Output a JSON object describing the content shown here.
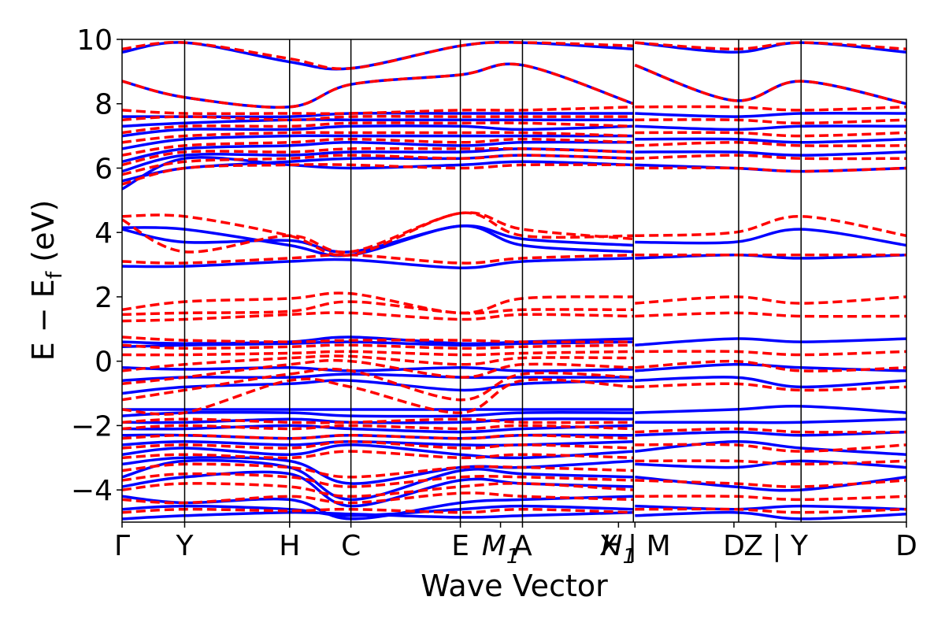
{
  "chart_data": {
    "type": "line",
    "title": "",
    "xlabel": "Wave Vector",
    "ylabel_main": "E − E",
    "ylabel_sub": "f",
    "ylabel_unit": " (eV)",
    "ylim": [
      -5,
      10
    ],
    "yticks": [
      {
        "value": 10,
        "label": "10"
      },
      {
        "value": 8,
        "label": "8"
      },
      {
        "value": 6,
        "label": "6"
      },
      {
        "value": 4,
        "label": "4"
      },
      {
        "value": 2,
        "label": "2"
      },
      {
        "value": 0,
        "label": "0"
      },
      {
        "value": -2,
        "label": "−2"
      },
      {
        "value": -4,
        "label": "−4"
      }
    ],
    "xlim": [
      0,
      1
    ],
    "xticks": [
      {
        "value": 0.0,
        "label": "Γ",
        "italic": false
      },
      {
        "value": 0.0798,
        "label": "Y",
        "italic": false
      },
      {
        "value": 0.2136,
        "label": "H",
        "italic": false
      },
      {
        "value": 0.2918,
        "label": "C",
        "italic": false
      },
      {
        "value": 0.4313,
        "label": "E",
        "italic": false
      },
      {
        "value": 0.4825,
        "label": "M",
        "sub": "1",
        "italic": true
      },
      {
        "value": 0.5105,
        "label": "A",
        "italic": false
      },
      {
        "value": 0.6329,
        "label": "H",
        "sub": "1",
        "italic": true
      },
      {
        "value": 0.6539,
        "label": "X | M",
        "italic": false
      },
      {
        "value": 0.7801,
        "label": "D",
        "italic": false
      },
      {
        "value": 0.8335,
        "label": "Z | Y",
        "italic": false
      },
      {
        "value": 1.0,
        "label": "D",
        "italic": false
      }
    ],
    "segment_boundaries": [
      0.0,
      0.0798,
      0.2136,
      0.2918,
      0.4313,
      0.5105,
      0.6519,
      0.7861,
      0.8657,
      1.0
    ],
    "line_breaks": [
      0.6519,
      0.8657
    ],
    "series": [
      {
        "style": "solid",
        "color": "#0000ff",
        "bands": [
          [
            -4.9,
            -4.8,
            -4.7,
            -4.75,
            -4.85,
            -4.8,
            -4.7
          ],
          [
            -4.6,
            -4.5,
            -4.6,
            -4.8,
            -4.6,
            -4.5,
            -4.6
          ],
          [
            -4.2,
            -4.4,
            -4.3,
            -4.9,
            -4.4,
            -4.3,
            -4.2
          ],
          [
            -3.9,
            -3.6,
            -3.5,
            -4.5,
            -3.7,
            -3.8,
            -3.9
          ],
          [
            -3.6,
            -3.1,
            -3.3,
            -4.3,
            -3.4,
            -3.5,
            -3.6
          ],
          [
            -3.2,
            -3.0,
            -3.1,
            -3.8,
            -3.3,
            -3.3,
            -3.1
          ],
          [
            -2.9,
            -2.7,
            -2.9,
            -2.6,
            -2.9,
            -3.0,
            -2.8
          ],
          [
            -2.6,
            -2.5,
            -2.6,
            -2.5,
            -2.6,
            -2.6,
            -2.5
          ],
          [
            -2.3,
            -2.3,
            -2.4,
            -2.3,
            -2.4,
            -2.3,
            -2.3
          ],
          [
            -2.1,
            -2.1,
            -2.0,
            -2.1,
            -2.2,
            -2.1,
            -2.0
          ],
          [
            -1.9,
            -1.9,
            -1.8,
            -1.9,
            -1.9,
            -1.8,
            -1.8
          ],
          [
            -1.7,
            -1.6,
            -1.6,
            -1.7,
            -1.7,
            -1.6,
            -1.6
          ],
          [
            -1.5,
            -1.5,
            -1.5,
            -1.5,
            -1.5,
            -1.5,
            -1.5
          ],
          [
            -1.0,
            -0.8,
            -0.7,
            -0.6,
            -0.9,
            -0.7,
            -0.6
          ],
          [
            -0.6,
            -0.5,
            -0.5,
            -0.4,
            -0.5,
            -0.5,
            -0.5
          ],
          [
            -0.2,
            -0.25,
            -0.2,
            -0.3,
            -0.2,
            -0.3,
            -0.25
          ],
          [
            0.45,
            0.5,
            0.55,
            0.6,
            0.5,
            0.55,
            0.6
          ],
          [
            0.6,
            0.55,
            0.6,
            0.75,
            0.55,
            0.6,
            0.7
          ],
          [
            2.95,
            2.95,
            3.1,
            3.15,
            2.9,
            3.1,
            3.2
          ],
          [
            4.15,
            4.1,
            3.6,
            3.3,
            4.2,
            3.6,
            3.4
          ],
          [
            4.1,
            3.7,
            3.75,
            3.4,
            4.2,
            3.8,
            3.6
          ],
          [
            5.35,
            6.3,
            6.1,
            6.0,
            6.1,
            6.2,
            6.1
          ],
          [
            5.6,
            6.0,
            6.2,
            6.3,
            6.3,
            6.4,
            6.3
          ],
          [
            5.9,
            6.4,
            6.4,
            6.5,
            6.5,
            6.6,
            6.5
          ],
          [
            6.2,
            6.6,
            6.7,
            6.8,
            6.7,
            6.8,
            6.8
          ],
          [
            6.6,
            6.9,
            7.0,
            7.0,
            7.0,
            7.0,
            7.0
          ],
          [
            7.0,
            7.2,
            7.2,
            7.3,
            7.3,
            7.2,
            7.3
          ],
          [
            7.3,
            7.4,
            7.5,
            7.5,
            7.5,
            7.5,
            7.5
          ],
          [
            7.6,
            7.6,
            7.6,
            7.7,
            7.7,
            7.7,
            7.7
          ],
          [
            8.7,
            8.2,
            7.9,
            8.6,
            8.9,
            9.2,
            8.0
          ],
          [
            9.6,
            9.9,
            9.3,
            9.1,
            9.8,
            9.9,
            9.7
          ]
        ]
      },
      {
        "style": "dashed",
        "color": "#ff0000",
        "bands": [
          [
            -4.7,
            -4.6,
            -4.65,
            -4.6,
            -4.7,
            -4.6,
            -4.7
          ],
          [
            -4.3,
            -4.4,
            -4.2,
            -4.4,
            -4.1,
            -4.2,
            -4.3
          ],
          [
            -4.0,
            -3.8,
            -3.9,
            -4.2,
            -3.9,
            -3.8,
            -4.0
          ],
          [
            -3.7,
            -3.5,
            -3.6,
            -3.9,
            -3.6,
            -3.6,
            -3.7
          ],
          [
            -3.4,
            -3.2,
            -3.3,
            -3.6,
            -3.3,
            -3.3,
            -3.4
          ],
          [
            -3.0,
            -2.9,
            -3.0,
            -2.8,
            -3.0,
            -2.9,
            -3.0
          ],
          [
            -2.7,
            -2.6,
            -2.7,
            -2.5,
            -2.7,
            -2.6,
            -2.7
          ],
          [
            -2.4,
            -2.3,
            -2.4,
            -2.3,
            -2.4,
            -2.3,
            -2.4
          ],
          [
            -2.1,
            -2.0,
            -2.1,
            -2.0,
            -2.1,
            -2.0,
            -2.1
          ],
          [
            -1.9,
            -1.8,
            -1.9,
            -1.9,
            -1.8,
            -1.9,
            -1.9
          ],
          [
            -1.5,
            -1.6,
            -0.6,
            -0.8,
            -1.6,
            -0.6,
            -0.8
          ],
          [
            -1.2,
            -0.9,
            -0.4,
            -0.3,
            -1.2,
            -0.4,
            -0.5
          ],
          [
            -0.7,
            -0.5,
            -0.1,
            0.0,
            -0.5,
            -0.1,
            -0.2
          ],
          [
            -0.3,
            -0.1,
            0.1,
            0.15,
            -0.1,
            0.1,
            0.1
          ],
          [
            0.2,
            0.2,
            0.25,
            0.3,
            0.2,
            0.25,
            0.3
          ],
          [
            0.5,
            0.4,
            0.45,
            0.5,
            0.4,
            0.45,
            0.5
          ],
          [
            0.75,
            0.65,
            0.6,
            0.65,
            0.65,
            0.6,
            0.6
          ],
          [
            1.25,
            1.3,
            1.45,
            1.5,
            1.3,
            1.45,
            1.4
          ],
          [
            1.45,
            1.5,
            1.55,
            1.85,
            1.5,
            1.6,
            1.6
          ],
          [
            1.6,
            1.85,
            1.95,
            2.1,
            1.5,
            1.95,
            2.0
          ],
          [
            3.1,
            3.05,
            3.2,
            3.3,
            3.05,
            3.2,
            3.3
          ],
          [
            4.5,
            4.5,
            3.9,
            3.3,
            4.6,
            3.9,
            3.9
          ],
          [
            4.4,
            3.4,
            3.9,
            3.4,
            4.6,
            4.1,
            3.8
          ],
          [
            5.5,
            6.0,
            6.1,
            6.1,
            6.0,
            6.1,
            6.1
          ],
          [
            5.8,
            6.2,
            6.3,
            6.4,
            6.3,
            6.4,
            6.3
          ],
          [
            6.1,
            6.5,
            6.5,
            6.6,
            6.6,
            6.6,
            6.5
          ],
          [
            6.4,
            6.7,
            6.8,
            6.9,
            6.8,
            6.9,
            6.8
          ],
          [
            6.8,
            7.0,
            7.1,
            7.1,
            7.1,
            7.1,
            7.0
          ],
          [
            7.1,
            7.3,
            7.3,
            7.4,
            7.4,
            7.4,
            7.3
          ],
          [
            7.5,
            7.6,
            7.5,
            7.6,
            7.6,
            7.6,
            7.6
          ],
          [
            7.8,
            7.7,
            7.7,
            7.7,
            7.8,
            7.8,
            7.9
          ],
          [
            8.7,
            8.2,
            7.9,
            8.6,
            8.9,
            9.2,
            8.0
          ],
          [
            9.7,
            9.9,
            9.4,
            9.1,
            9.8,
            9.9,
            9.8
          ]
        ]
      }
    ],
    "band_sample_x": [
      0.0,
      0.0798,
      0.2136,
      0.2918,
      0.4313,
      0.5105,
      0.6519
    ],
    "right_band_sample_x": [
      0.6539,
      0.7801,
      0.8657,
      1.0
    ],
    "right_panel_bands": {
      "solid": [
        [
          -4.8,
          -4.7,
          -4.9,
          -4.75
        ],
        [
          -4.5,
          -4.6,
          -4.5,
          -4.6
        ],
        [
          -3.6,
          -3.9,
          -4.0,
          -3.6
        ],
        [
          -3.2,
          -3.3,
          -3.1,
          -3.3
        ],
        [
          -2.8,
          -2.5,
          -2.7,
          -2.9
        ],
        [
          -2.3,
          -2.2,
          -2.3,
          -2.2
        ],
        [
          -1.9,
          -1.9,
          -1.9,
          -1.8
        ],
        [
          -1.6,
          -1.5,
          -1.4,
          -1.6
        ],
        [
          -0.6,
          -0.5,
          -0.8,
          -0.6
        ],
        [
          -0.3,
          -0.1,
          -0.2,
          -0.3
        ],
        [
          0.5,
          0.7,
          0.6,
          0.7
        ],
        [
          3.2,
          3.3,
          3.2,
          3.3
        ],
        [
          3.7,
          3.7,
          4.1,
          3.6
        ],
        [
          6.1,
          6.0,
          5.9,
          6.0
        ],
        [
          6.5,
          6.5,
          6.4,
          6.5
        ],
        [
          6.9,
          6.9,
          6.8,
          6.9
        ],
        [
          7.3,
          7.2,
          7.3,
          7.3
        ],
        [
          7.7,
          7.6,
          7.7,
          7.7
        ],
        [
          9.2,
          8.1,
          8.7,
          8.0
        ],
        [
          9.9,
          9.6,
          9.9,
          9.6
        ]
      ],
      "dashed": [
        [
          -4.6,
          -4.6,
          -4.7,
          -4.6
        ],
        [
          -4.2,
          -4.2,
          -4.3,
          -4.2
        ],
        [
          -3.7,
          -3.8,
          -3.9,
          -3.7
        ],
        [
          -3.1,
          -3.1,
          -3.2,
          -3.1
        ],
        [
          -2.6,
          -2.6,
          -2.8,
          -2.6
        ],
        [
          -2.2,
          -2.1,
          -2.2,
          -2.2
        ],
        [
          -0.8,
          -0.7,
          -0.9,
          -0.8
        ],
        [
          -0.2,
          0.0,
          -0.3,
          -0.2
        ],
        [
          0.3,
          0.3,
          0.2,
          0.3
        ],
        [
          1.4,
          1.5,
          1.4,
          1.4
        ],
        [
          1.8,
          2.0,
          1.8,
          2.0
        ],
        [
          3.3,
          3.3,
          3.3,
          3.3
        ],
        [
          3.9,
          4.0,
          4.5,
          3.9
        ],
        [
          6.0,
          6.0,
          5.9,
          6.0
        ],
        [
          6.3,
          6.4,
          6.3,
          6.3
        ],
        [
          6.7,
          6.8,
          6.7,
          6.7
        ],
        [
          7.1,
          7.1,
          7.0,
          7.1
        ],
        [
          7.5,
          7.5,
          7.4,
          7.5
        ],
        [
          7.9,
          7.9,
          7.8,
          7.9
        ],
        [
          9.2,
          8.1,
          8.7,
          8.0
        ],
        [
          9.9,
          9.7,
          9.9,
          9.7
        ]
      ]
    },
    "grid": false
  }
}
